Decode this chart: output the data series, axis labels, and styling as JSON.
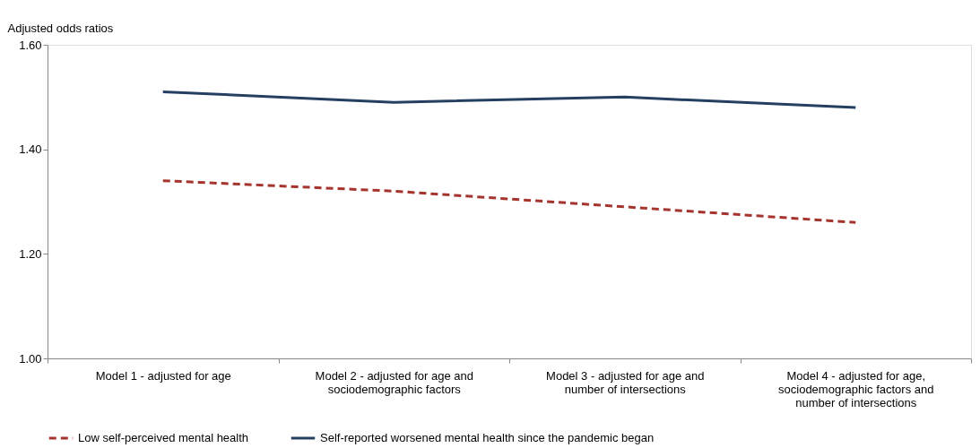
{
  "chart_data": {
    "type": "line",
    "ylabel": "Adjusted odds ratios",
    "categories": [
      "Model 1 - adjusted for age",
      "Model 2 - adjusted for age and sociodemographic factors",
      "Model 3 - adjusted for age and number of intersections",
      "Model 4 - adjusted for age, sociodemographic factors and number of intersections"
    ],
    "series": [
      {
        "name": "Low self-perceived mental health",
        "color": "#a5342f",
        "line_style": "dashed",
        "values": [
          1.34,
          1.32,
          1.29,
          1.26
        ]
      },
      {
        "name": "Self-reported worsened mental health since the pandemic began",
        "color": "#243f60",
        "line_style": "solid",
        "values": [
          1.51,
          1.49,
          1.5,
          1.48
        ]
      }
    ],
    "ylim": [
      1.0,
      1.6
    ],
    "yticks": [
      {
        "value": 1.0,
        "label": "1.00"
      },
      {
        "value": 1.2,
        "label": "1.20"
      },
      {
        "value": 1.4,
        "label": "1.40"
      },
      {
        "value": 1.6,
        "label": "1.60"
      }
    ],
    "grid": false,
    "legend": "bottom",
    "marker": "none"
  }
}
